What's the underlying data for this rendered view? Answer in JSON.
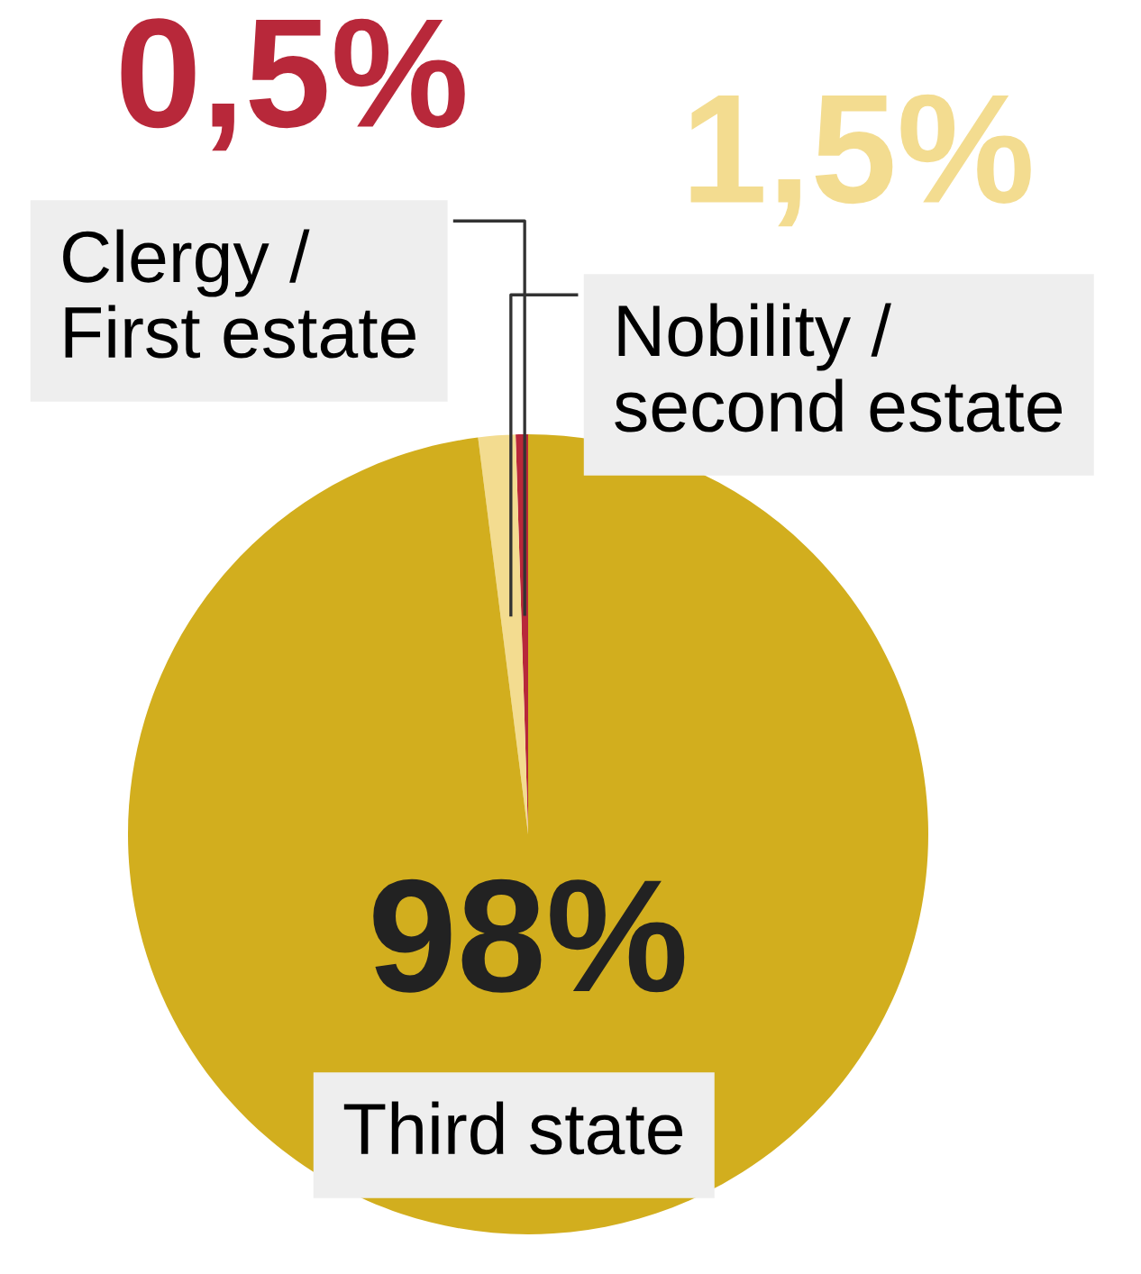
{
  "chart_data": {
    "type": "pie",
    "categories": [
      "Clergy /\nFirst estate",
      "Nobility /\nsecond estate",
      "Third state"
    ],
    "values": [
      0.5,
      1.5,
      98
    ],
    "colors": [
      "#b8283a",
      "#f3dc90",
      "#d2ae1e"
    ],
    "value_labels": [
      "0,5%",
      "1,5%",
      "98%"
    ]
  }
}
